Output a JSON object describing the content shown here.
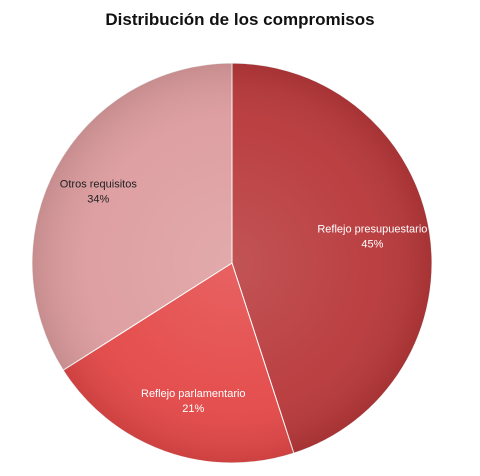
{
  "chart_data": {
    "type": "pie",
    "title": "Distribución de los compromisos",
    "slices": [
      {
        "label": "Reflejo presupuestario",
        "value": 45,
        "value_label": "45%",
        "color": "#b8383a",
        "text_color": "#ffffff"
      },
      {
        "label": "Reflejo parlamentario",
        "value": 21,
        "value_label": "21%",
        "color": "#e44848",
        "text_color": "#ffffff"
      },
      {
        "label": "Otros requisitos",
        "value": 34,
        "value_label": "34%",
        "color": "#dd9c9e",
        "text_color": "#222222"
      }
    ],
    "start_angle_deg": 0,
    "direction": "clockwise",
    "legend": "none"
  }
}
